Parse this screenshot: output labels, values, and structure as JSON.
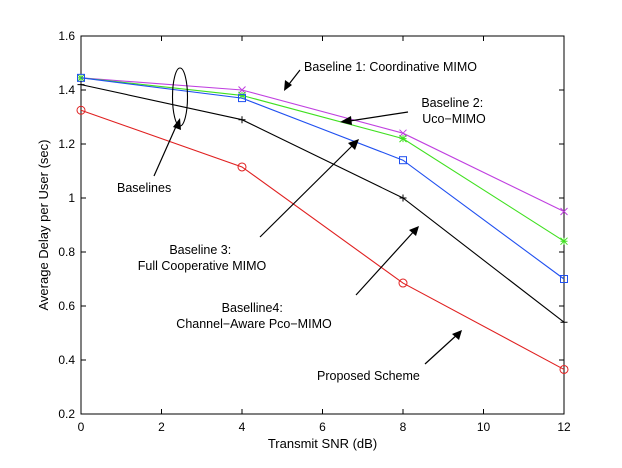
{
  "chart_data": {
    "type": "line",
    "title": "",
    "xlabel": "Transmit SNR (dB)",
    "ylabel": "Average Delay per User (sec)",
    "xlim": [
      0,
      12
    ],
    "ylim": [
      0.2,
      1.6
    ],
    "xticks": [
      0,
      2,
      4,
      6,
      8,
      10,
      12
    ],
    "yticks": [
      0.2,
      0.4,
      0.6,
      0.8,
      1.0,
      1.2,
      1.4,
      1.6
    ],
    "xtick_labels": [
      "0",
      "2",
      "4",
      "6",
      "8",
      "10",
      "12"
    ],
    "ytick_labels": [
      "0.2",
      "0.4",
      "0.6",
      "0.8",
      "1",
      "1.2",
      "1.4",
      "1.6"
    ],
    "grid": false,
    "x": [
      0,
      4,
      8,
      12
    ],
    "series": [
      {
        "name": "Baseline 1: Coordinative MIMO",
        "color": "#c040e0",
        "marker": "x",
        "values": [
          1.445,
          1.4,
          1.24,
          0.95
        ]
      },
      {
        "name": "Baseline 2: Uco-MIMO",
        "color": "#40e020",
        "marker": "star",
        "values": [
          1.445,
          1.38,
          1.22,
          0.84
        ]
      },
      {
        "name": "Baseline 3: Full Cooperative MIMO",
        "color": "#2050f0",
        "marker": "square",
        "values": [
          1.445,
          1.37,
          1.14,
          0.7
        ]
      },
      {
        "name": "Baselline4: Channel-Aware Pco-MIMO",
        "color": "#000000",
        "marker": "plus",
        "values": [
          1.42,
          1.29,
          1.0,
          0.54
        ]
      },
      {
        "name": "Proposed Scheme",
        "color": "#e02020",
        "marker": "circle",
        "values": [
          1.325,
          1.115,
          0.685,
          0.365
        ]
      }
    ],
    "annotations": [
      {
        "id": "baseline1",
        "lines": [
          "Baseline 1: Coordinative MIMO"
        ]
      },
      {
        "id": "baseline2",
        "lines": [
          "Baseline 2:",
          "Uco−MIMO"
        ]
      },
      {
        "id": "baselines",
        "lines": [
          "Baselines"
        ]
      },
      {
        "id": "baseline3",
        "lines": [
          "Baseline 3:",
          "Full Cooperative MIMO"
        ]
      },
      {
        "id": "baseline4",
        "lines": [
          "Baselline4:",
          "Channel−Aware Pco−MIMO"
        ]
      },
      {
        "id": "proposed",
        "lines": [
          "Proposed Scheme"
        ]
      }
    ]
  }
}
